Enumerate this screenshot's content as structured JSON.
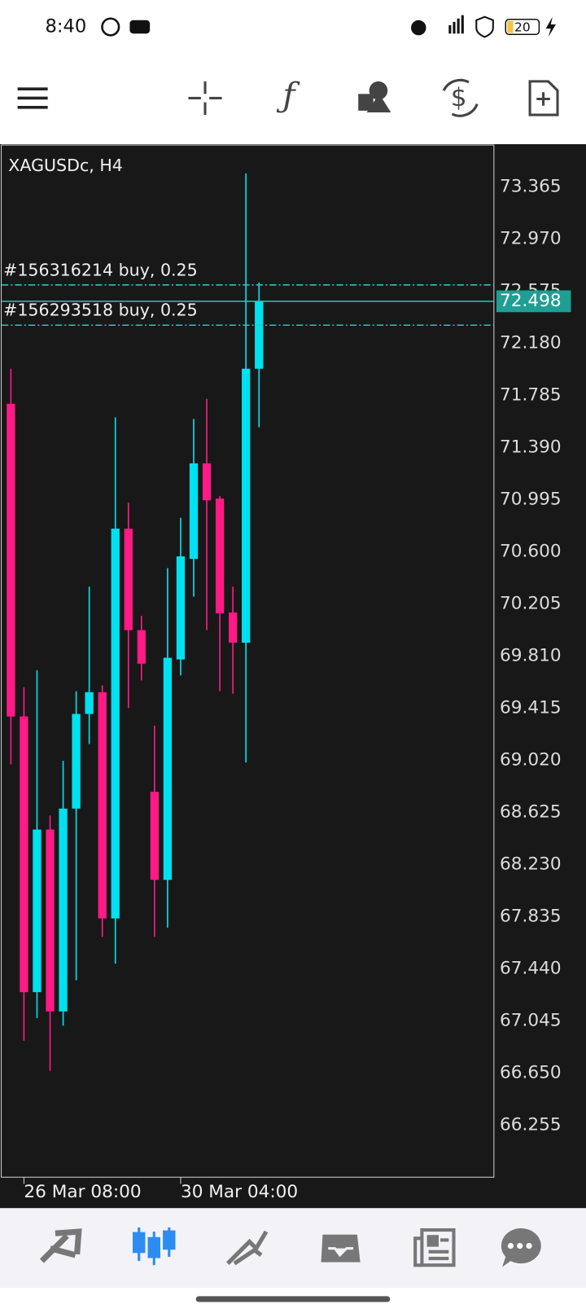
{
  "status_bar": {
    "time": "8:40",
    "battery": "20"
  },
  "chart_data": {
    "type": "candlestick",
    "title": "XAGUSDc, H4",
    "categories": [
      null,
      "26 Mar 08:00",
      null,
      null,
      null,
      null,
      null,
      null,
      null,
      null,
      null,
      null,
      null,
      "30 Mar 04:00",
      null,
      null,
      null,
      null,
      null,
      null
    ],
    "open": [
      71.721,
      69.352,
      67.263,
      68.495,
      67.117,
      68.654,
      69.371,
      69.536,
      67.822,
      70.775,
      70.006,
      68.781,
      68.114,
      69.784,
      70.546,
      71.27,
      71.003,
      70.14,
      69.911,
      71.987
    ],
    "high": [
      71.987,
      69.575,
      69.702,
      68.603,
      69.016,
      69.543,
      70.336,
      69.587,
      71.619,
      70.971,
      70.114,
      69.282,
      70.476,
      70.857,
      71.606,
      71.759,
      71.022,
      70.336,
      73.467,
      72.641
    ],
    "low": [
      68.99,
      66.895,
      67.067,
      66.667,
      67.009,
      67.352,
      69.143,
      67.682,
      67.479,
      69.416,
      69.625,
      67.682,
      67.752,
      69.663,
      70.26,
      70.006,
      69.543,
      69.524,
      69.003,
      71.543
    ],
    "close": [
      69.352,
      67.263,
      68.495,
      67.117,
      68.654,
      69.371,
      69.536,
      67.822,
      70.775,
      70.006,
      69.752,
      68.114,
      69.797,
      70.565,
      71.27,
      70.99,
      70.133,
      69.911,
      71.987,
      72.498
    ],
    "up_color": "#00e1f0",
    "down_color": "#ff1a85",
    "ylim": [
      65.861,
      73.682
    ],
    "yticks": [
      73.365,
      {
        "value": 72.97,
        "label": "72.970"
      },
      72.575,
      {
        "value": 72.18,
        "label": "72.180"
      },
      71.785,
      {
        "value": 71.39,
        "label": "71.390"
      },
      70.995,
      {
        "value": 70.6,
        "label": "70.600"
      },
      70.205,
      {
        "value": 69.81,
        "label": "69.810"
      },
      69.415,
      {
        "value": 69.02,
        "label": "69.020"
      },
      68.625,
      {
        "value": 68.23,
        "label": "68.230"
      },
      67.835,
      {
        "value": 67.44,
        "label": "67.440"
      },
      67.045,
      {
        "value": 66.65,
        "label": "66.650"
      },
      66.255
    ],
    "order_lines": [
      {
        "label": "#156316214 buy, 0.25",
        "value": 72.622
      },
      {
        "label": "#156293518 buy, 0.25",
        "value": 72.317
      }
    ],
    "current_price": 72.498
  }
}
